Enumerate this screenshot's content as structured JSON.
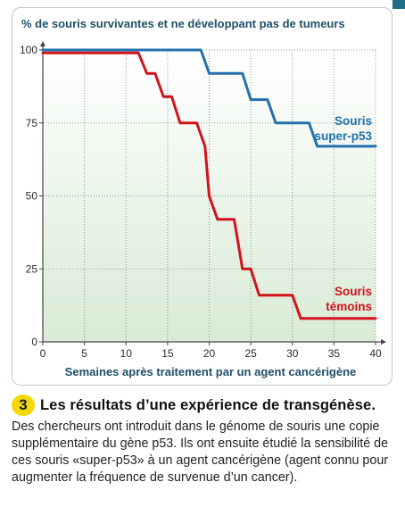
{
  "figure": {
    "number": "3",
    "title": "Les résultats d’une expérience de transgénèse.",
    "text": "Des chercheurs ont introduit dans le génome de souris une copie supplémentaire du gène p53. Ils ont ensuite étudié la sensibilité de ces souris «super-p53» à un agent cancérigène (agent connu pour augmenter la fréquence de survenue d’un cancer)."
  },
  "colors": {
    "super_p53": "#2271ad",
    "temoins": "#d2121c",
    "axis_title": "#1f4f68"
  },
  "chart_data": {
    "type": "line",
    "step": true,
    "title": "",
    "ylabel": "% de souris survivantes et ne développant pas de tumeurs",
    "xlabel": "Semaines après traitement par un agent cancérigène",
    "xlim": [
      0,
      40
    ],
    "ylim": [
      0,
      100
    ],
    "xticks": [
      0,
      5,
      10,
      15,
      20,
      25,
      30,
      35,
      40
    ],
    "yticks": [
      0,
      25,
      50,
      75,
      100
    ],
    "grid": "dotted",
    "series": [
      {
        "name": "Souris super-p53",
        "label_lines": [
          "Souris",
          "super-p53"
        ],
        "color": "#2271ad",
        "points": [
          [
            0,
            100
          ],
          [
            19,
            100
          ],
          [
            20,
            92
          ],
          [
            24,
            92
          ],
          [
            25,
            83
          ],
          [
            27,
            83
          ],
          [
            28,
            75
          ],
          [
            32,
            75
          ],
          [
            33,
            67
          ],
          [
            40,
            67
          ]
        ]
      },
      {
        "name": "Souris témoins",
        "label_lines": [
          "Souris",
          "témoins"
        ],
        "color": "#d2121c",
        "points": [
          [
            0,
            99
          ],
          [
            11.5,
            99
          ],
          [
            12.5,
            92
          ],
          [
            13.5,
            92
          ],
          [
            14.5,
            84
          ],
          [
            15.5,
            84
          ],
          [
            16.5,
            75
          ],
          [
            18.5,
            75
          ],
          [
            19.5,
            67
          ],
          [
            20,
            50
          ],
          [
            21,
            42
          ],
          [
            23,
            42
          ],
          [
            24,
            25
          ],
          [
            25,
            25
          ],
          [
            26,
            16
          ],
          [
            30,
            16
          ],
          [
            31,
            8
          ],
          [
            40,
            8
          ]
        ]
      }
    ]
  }
}
